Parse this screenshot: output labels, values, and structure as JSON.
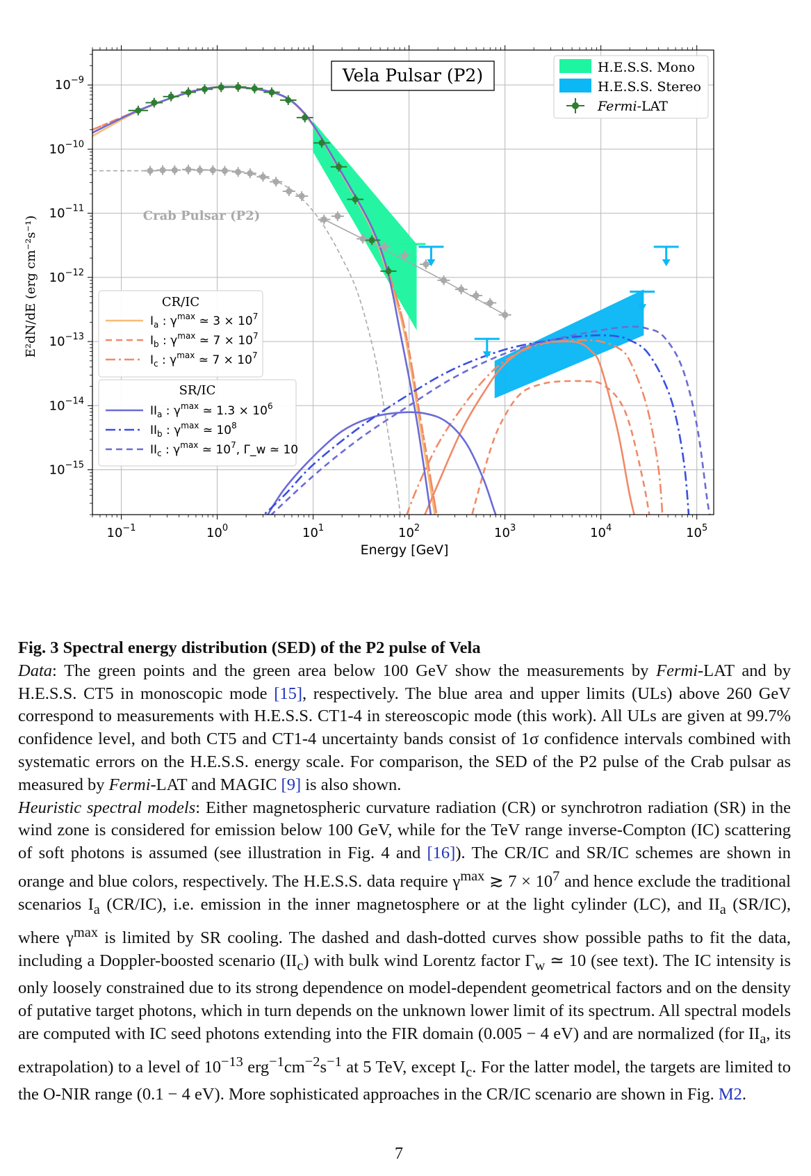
{
  "chart_data": {
    "type": "line",
    "title": "Vela Pulsar (P2)",
    "xlabel": "Energy [GeV]",
    "ylabel": "E²dN/dE (erg cm⁻²s⁻¹)",
    "xscale": "log",
    "yscale": "log",
    "xlim": [
      0.05,
      150000
    ],
    "ylim": [
      2e-16,
      3.5e-09
    ],
    "x_ticks": [
      {
        "v": 0.1,
        "base": "10",
        "exp": "−1"
      },
      {
        "v": 1,
        "base": "10",
        "exp": "0"
      },
      {
        "v": 10,
        "base": "10",
        "exp": "1"
      },
      {
        "v": 100,
        "base": "10",
        "exp": "2"
      },
      {
        "v": 1000,
        "base": "10",
        "exp": "3"
      },
      {
        "v": 10000,
        "base": "10",
        "exp": "4"
      },
      {
        "v": 100000,
        "base": "10",
        "exp": "5"
      }
    ],
    "y_ticks": [
      {
        "v": 1e-09,
        "base": "10",
        "exp": "−9"
      },
      {
        "v": 1e-10,
        "base": "10",
        "exp": "−10"
      },
      {
        "v": 1e-11,
        "base": "10",
        "exp": "−11"
      },
      {
        "v": 1e-12,
        "base": "10",
        "exp": "−12"
      },
      {
        "v": 1e-13,
        "base": "10",
        "exp": "−13"
      },
      {
        "v": 1e-14,
        "base": "10",
        "exp": "−14"
      },
      {
        "v": 1e-15,
        "base": "10",
        "exp": "−15"
      }
    ],
    "grid": true,
    "legend_data": {
      "placement": "top-right",
      "entries": [
        {
          "label": "H.E.S.S. Mono",
          "color": "#1ef5a0"
        },
        {
          "label": "H.E.S.S. Stereo",
          "color": "#0bb8f5"
        },
        {
          "label_italic": "Fermi",
          "label_rest": "-LAT",
          "color": "#2e7d32"
        }
      ]
    },
    "annotation": "Crab Pulsar (P2)",
    "legend_cr": {
      "title": "CR/IC",
      "placement": "middle-left",
      "entries": [
        {
          "label": "I",
          "sub": "a",
          "val": "3 × 10",
          "exp": "7",
          "extra": ""
        },
        {
          "label": "I",
          "sub": "b",
          "val": "7 × 10",
          "exp": "7",
          "extra": ""
        },
        {
          "label": "I",
          "sub": "c",
          "val": "7 × 10",
          "exp": "7",
          "extra": ""
        }
      ]
    },
    "legend_sr": {
      "title": "SR/IC",
      "placement": "lower-left",
      "entries": [
        {
          "label": "II",
          "sub": "a",
          "val": "1.3 × 10",
          "exp": "6",
          "extra": ""
        },
        {
          "label": "II",
          "sub": "b",
          "val": "10",
          "exp": "8",
          "extra": ""
        },
        {
          "label": "II",
          "sub": "c",
          "val": "10",
          "exp": "7",
          "extra": ", Γ_w ≃ 10"
        }
      ]
    },
    "series": [
      {
        "name": "Fermi-LAT",
        "kind": "points",
        "color": "#2e7d32",
        "x": [
          0.15,
          0.22,
          0.33,
          0.5,
          0.74,
          1.1,
          1.65,
          2.45,
          3.7,
          5.5,
          8.2,
          12.3,
          18.5,
          27.5,
          41,
          61
        ],
        "y": [
          4e-10,
          5.3e-10,
          6.6e-10,
          7.7e-10,
          8.6e-10,
          9.2e-10,
          9.3e-10,
          8.8e-10,
          7.7e-10,
          5.8e-10,
          3.1e-10,
          1.25e-10,
          5.3e-11,
          1.65e-11,
          3.8e-12,
          1.25e-12
        ],
        "xerr": [
          0.04,
          0.05,
          0.07,
          0.1,
          0.16,
          0.24,
          0.36,
          0.55,
          0.8,
          1.2,
          1.8,
          2.7,
          4.0,
          6.0,
          9.0,
          13.0
        ]
      },
      {
        "name": "Crab Pulsar (P2)",
        "kind": "points",
        "color": "#a9a9a9",
        "x": [
          0.2,
          0.27,
          0.36,
          0.5,
          0.66,
          0.9,
          1.2,
          1.65,
          2.2,
          3.0,
          4.1,
          5.6,
          7.6,
          13,
          18,
          33,
          55,
          90,
          150,
          230,
          350,
          500,
          700,
          1000
        ],
        "y": [
          4.6e-11,
          4.7e-11,
          4.7e-11,
          4.8e-11,
          4.7e-11,
          4.7e-11,
          4.6e-11,
          4.4e-11,
          4.2e-11,
          3.7e-11,
          3.1e-11,
          2.2e-11,
          1.85e-11,
          8e-12,
          9e-12,
          4e-12,
          3e-12,
          2.2e-12,
          1.6e-12,
          9e-13,
          6.5e-13,
          5.2e-13,
          4e-13,
          2.6e-13
        ]
      },
      {
        "name": "Ia",
        "kind": "curve",
        "style": "solid",
        "color": "#f7bb75",
        "x": [
          0.05,
          0.15,
          0.5,
          1.1,
          2.5,
          5,
          8,
          12,
          20,
          40,
          60,
          90,
          130,
          200
        ],
        "y": [
          1.6e-10,
          3.9e-10,
          7.6e-10,
          9.2e-10,
          8.6e-10,
          6.5e-10,
          3.6e-10,
          1.5e-10,
          4e-11,
          6e-12,
          1.1e-12,
          1.3e-13,
          5e-15,
          1e-16
        ]
      },
      {
        "name": "Ib",
        "kind": "curve",
        "style": "dash",
        "color": "#f08a68",
        "x": [
          0.05,
          0.15,
          0.5,
          1.1,
          2.5,
          5,
          8,
          12,
          20,
          40,
          60,
          90,
          130,
          200
        ],
        "y": [
          2e-10,
          4e-10,
          7.7e-10,
          9.3e-10,
          8.7e-10,
          6.6e-10,
          3.7e-10,
          1.55e-10,
          4.2e-11,
          6.5e-12,
          1.3e-12,
          1.6e-13,
          7e-15,
          1.5e-16
        ]
      },
      {
        "name": "Ic",
        "kind": "curve",
        "style": "dashdot",
        "color": "#f08a68",
        "x": [
          0.05,
          0.15,
          0.5,
          1.1,
          2.5,
          5,
          8,
          12,
          20,
          40,
          60,
          90,
          130,
          200
        ],
        "y": [
          2e-10,
          4e-10,
          7.7e-10,
          9.3e-10,
          8.7e-10,
          6.6e-10,
          3.7e-10,
          1.55e-10,
          4.2e-11,
          6.5e-12,
          1.3e-12,
          1.6e-13,
          7e-15,
          1.5e-16
        ]
      },
      {
        "name": "IC Ia",
        "kind": "curve",
        "style": "solid",
        "color": "#f08a68",
        "x": [
          120,
          200,
          350,
          600,
          1000,
          2000,
          4000,
          6000,
          8000,
          10000,
          15000,
          20000,
          25000
        ],
        "y": [
          1e-16,
          6e-16,
          4e-15,
          1.6e-14,
          4.5e-14,
          9e-14,
          1e-13,
          9.5e-14,
          7e-14,
          4e-14,
          4e-15,
          4e-16,
          1e-16
        ]
      },
      {
        "name": "IC Ib",
        "kind": "curve",
        "style": "dash",
        "color": "#f08a68",
        "x": [
          400,
          700,
          1000,
          1500,
          2500,
          4000,
          7000,
          10000,
          15000,
          20000,
          28000,
          35000,
          40000
        ],
        "y": [
          1e-16,
          2e-15,
          7e-15,
          1.6e-14,
          2.2e-14,
          2.4e-14,
          2.4e-14,
          2.2e-14,
          1.3e-14,
          5e-15,
          6e-16,
          1e-16,
          1e-16
        ]
      },
      {
        "name": "IC Ic",
        "kind": "curve",
        "style": "dashdot",
        "color": "#f08a68",
        "x": [
          80,
          120,
          200,
          350,
          600,
          1000,
          2000,
          4000,
          7000,
          10000,
          15000,
          20000,
          30000,
          40000,
          45000
        ],
        "y": [
          1e-16,
          5e-16,
          2.5e-15,
          9e-15,
          2.5e-14,
          5e-14,
          8.5e-14,
          1.02e-13,
          1.05e-13,
          1e-13,
          8e-14,
          5e-14,
          1e-14,
          1e-15,
          1e-16
        ]
      },
      {
        "name": "IIa",
        "kind": "curve",
        "style": "solid",
        "color": "#6b6bd6",
        "x": [
          0.05,
          0.15,
          0.5,
          1.1,
          2.5,
          5,
          8,
          12,
          20,
          40,
          60,
          80,
          120,
          180
        ],
        "y": [
          1.8e-10,
          4e-10,
          7.6e-10,
          9.3e-10,
          8.7e-10,
          6.6e-10,
          3.7e-10,
          1.55e-10,
          4.2e-11,
          6.5e-12,
          1.2e-12,
          1.5e-13,
          6e-15,
          1e-16
        ]
      },
      {
        "name": "IC IIa",
        "kind": "curve",
        "style": "solid",
        "color": "#6b6bd6",
        "x": [
          3,
          5,
          10,
          20,
          40,
          80,
          150,
          250,
          400,
          600,
          800,
          1000
        ],
        "y": [
          1.5e-16,
          5e-16,
          1.6e-15,
          4e-15,
          6.5e-15,
          7.8e-15,
          7.5e-15,
          5.5e-15,
          2.5e-15,
          7e-16,
          2e-16,
          1e-16
        ]
      },
      {
        "name": "IC IIb",
        "kind": "curve",
        "style": "dashdot",
        "color": "#3a4fe0",
        "x": [
          2.5,
          5,
          10,
          30,
          100,
          300,
          1000,
          3000,
          6000,
          10000,
          15000,
          20000,
          30000,
          45000,
          60000,
          75000,
          85000
        ],
        "y": [
          1.5e-16,
          4e-16,
          1.2e-15,
          4.5e-15,
          1.5e-14,
          3.8e-14,
          7.5e-14,
          1.05e-13,
          1.2e-13,
          1.25e-13,
          1.2e-13,
          1.05e-13,
          7e-14,
          2.5e-14,
          7e-15,
          1e-15,
          1e-16
        ]
      },
      {
        "name": "IC IIc",
        "kind": "curve",
        "style": "dash",
        "color": "#6b6bd6",
        "x": [
          3,
          10,
          30,
          100,
          300,
          1000,
          3000,
          10000,
          20000,
          30000,
          45000,
          70000,
          100000,
          130000,
          150000
        ],
        "y": [
          1.5e-16,
          8e-16,
          3e-15,
          1e-14,
          2.8e-14,
          6.5e-14,
          1.05e-13,
          1.5e-13,
          1.7e-13,
          1.6e-13,
          1.2e-13,
          4e-14,
          5e-15,
          3e-16,
          1e-16
        ]
      },
      {
        "name": "H.E.S.S. Mono",
        "kind": "band",
        "color": "#1ef5a0",
        "x": [
          10,
          120
        ],
        "y_low": [
          9e-11,
          1.5e-13
        ],
        "y_high": [
          2.7e-10,
          3.3e-12
        ]
      },
      {
        "name": "H.E.S.S. Stereo",
        "kind": "band",
        "color": "#0bb8f5",
        "x": [
          780,
          28000
        ],
        "y_low": [
          1.3e-14,
          1.25e-13
        ],
        "y_high": [
          5e-14,
          6.5e-13
        ]
      },
      {
        "name": "H.E.S.S. Stereo UL",
        "kind": "ul",
        "color": "#0bb8f5",
        "x": [
          170,
          650,
          27000,
          48000
        ],
        "y": [
          3e-12,
          1.1e-13,
          6e-13,
          3e-12
        ]
      },
      {
        "name": "H.E.S.S. Mono UL",
        "kind": "ul",
        "color": "#1ef5a0",
        "x": [
          110
        ],
        "y": [
          3.3e-12
        ]
      }
    ]
  },
  "caption": {
    "title": "Fig. 3  Spectral energy distribution (SED) of the P2 pulse of Vela",
    "p1": [
      {
        "t": "Data",
        "em": true
      },
      {
        "t": ": The green points and the green area below 100 GeV show the measurements by "
      },
      {
        "t": "Fermi",
        "em": true
      },
      {
        "t": "-LAT and by H.E.S.S. CT5 in monoscopic mode "
      },
      {
        "t": "[15]",
        "ref": true
      },
      {
        "t": ", respectively. The blue area and upper limits (ULs) above 260 GeV correspond to measurements with H.E.S.S. CT1-4 in stereoscopic mode (this work). All ULs are given at 99.7% confidence level, and both CT5 and CT1-4 uncertainty bands consist of 1σ confidence intervals combined with systematic errors on the H.E.S.S. energy scale. For comparison, the SED of the P2 pulse of the Crab pulsar as measured by "
      },
      {
        "t": "Fermi",
        "em": true
      },
      {
        "t": "-LAT and MAGIC "
      },
      {
        "t": "[9]",
        "ref": true
      },
      {
        "t": " is also shown."
      }
    ],
    "p2": [
      {
        "t": "Heuristic spectral models",
        "em": true
      },
      {
        "t": ": Either magnetospheric curvature radiation (CR) or synchrotron radiation (SR) in the wind zone is considered for emission below 100 GeV, while for the TeV range inverse-Compton (IC) scattering of soft photons is assumed (see illustration in Fig. 4 and "
      },
      {
        "t": "[16]",
        "ref": true
      },
      {
        "t": "). The CR/IC and SR/IC schemes are shown in orange and blue colors, respectively. The H.E.S.S. data require γ"
      },
      {
        "t": "max",
        "sup": true
      },
      {
        "t": " ≳ 7 × 10"
      },
      {
        "t": "7",
        "sup": true
      },
      {
        "t": " and hence exclude the traditional scenarios I"
      },
      {
        "t": "a",
        "sub": true
      },
      {
        "t": " (CR/IC), i.e. emission in the inner magnetosphere or at the light cylinder (LC), and II"
      },
      {
        "t": "a",
        "sub": true
      },
      {
        "t": " (SR/IC), where γ"
      },
      {
        "t": "max",
        "sup": true
      },
      {
        "t": " is limited by SR cooling. The dashed and dash-dotted curves show possible paths to fit the data, including a Doppler-boosted scenario (II"
      },
      {
        "t": "c",
        "sub": true
      },
      {
        "t": ") with bulk wind Lorentz factor Γ"
      },
      {
        "t": "w",
        "sub": true
      },
      {
        "t": " ≃ 10 (see text). The IC intensity is only loosely constrained due to its strong dependence on model-dependent geometrical factors and on the density of putative target photons, which in turn depends on the unknown lower limit of its spectrum. All spectral models are computed with IC seed photons extending into the FIR domain (0.005 − 4 eV) and are normalized (for II"
      },
      {
        "t": "a",
        "sub": true
      },
      {
        "t": ", its extrapolation) to a level of 10"
      },
      {
        "t": "−13",
        "sup": true
      },
      {
        "t": " erg"
      },
      {
        "t": "−1",
        "sup": true
      },
      {
        "t": "cm"
      },
      {
        "t": "−2",
        "sup": true
      },
      {
        "t": "s"
      },
      {
        "t": "−1",
        "sup": true
      },
      {
        "t": " at 5 TeV, except I"
      },
      {
        "t": "c",
        "sub": true
      },
      {
        "t": ". For the latter model, the targets are limited to the O-NIR range (0.1 − 4 eV). More sophisticated approaches in the CR/IC scenario are shown in Fig. "
      },
      {
        "t": "M2",
        "ref": true
      },
      {
        "t": "."
      }
    ]
  },
  "page_number": "7"
}
